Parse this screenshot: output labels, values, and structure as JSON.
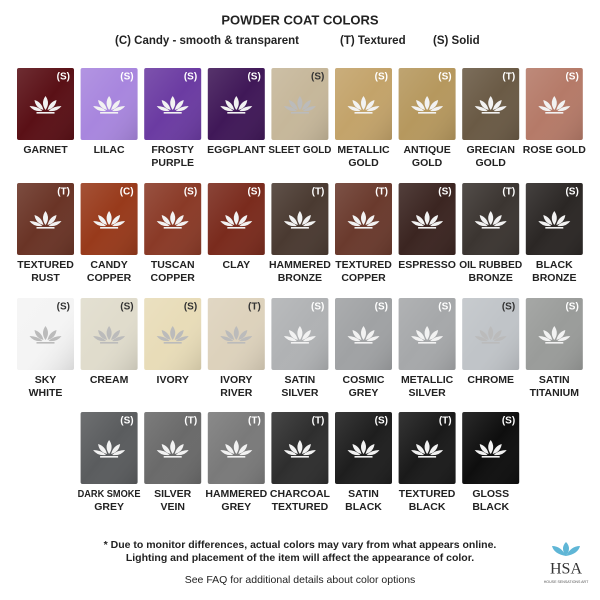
{
  "header": {
    "title": "POWDER COAT COLORS",
    "legend": [
      "(C) Candy - smooth & transparent",
      "(T) Textured",
      "(S) Solid"
    ]
  },
  "rows": [
    {
      "swatches": [
        {
          "name": [
            "GARNET"
          ],
          "code": "(S)",
          "color": "#5a1016"
        },
        {
          "name": [
            "LILAC"
          ],
          "code": "(S)",
          "color": "#a886de"
        },
        {
          "name": [
            "FROSTY",
            "PURPLE"
          ],
          "code": "(S)",
          "color": "#6b3ba2"
        },
        {
          "name": [
            "EGGPLANT"
          ],
          "code": "(S)",
          "color": "#401858"
        },
        {
          "name": [
            "SLEET GOLD"
          ],
          "code": "(S)",
          "color": "#c6b79a"
        },
        {
          "name": [
            "METALLIC",
            "GOLD"
          ],
          "code": "(S)",
          "color": "#c3a36a"
        },
        {
          "name": [
            "ANTIQUE",
            "GOLD"
          ],
          "code": "(S)",
          "color": "#b6985e"
        },
        {
          "name": [
            "GRECIAN",
            "GOLD"
          ],
          "code": "(T)",
          "color": "#6a5a45"
        },
        {
          "name": [
            "ROSE GOLD"
          ],
          "code": "(S)",
          "color": "#b57a68"
        }
      ]
    },
    {
      "swatches": [
        {
          "name": [
            "TEXTURED",
            "RUST"
          ],
          "code": "(T)",
          "color": "#6a3426"
        },
        {
          "name": [
            "CANDY",
            "COPPER"
          ],
          "code": "(C)",
          "color": "#983a1b"
        },
        {
          "name": [
            "TUSCAN",
            "COPPER"
          ],
          "code": "(S)",
          "color": "#8a3a27"
        },
        {
          "name": [
            "CLAY"
          ],
          "code": "(S)",
          "color": "#7a2b1d"
        },
        {
          "name": [
            "HAMMERED",
            "BRONZE"
          ],
          "code": "(T)",
          "color": "#4a3a31"
        },
        {
          "name": [
            "TEXTURED",
            "COPPER"
          ],
          "code": "(T)",
          "color": "#6a3a2d"
        },
        {
          "name": [
            "ESPRESSO"
          ],
          "code": "(S)",
          "color": "#3b2521"
        },
        {
          "name": [
            "OIL RUBBED",
            "BRONZE"
          ],
          "code": "(T)",
          "color": "#3b3531"
        },
        {
          "name": [
            "BLACK",
            "BRONZE"
          ],
          "code": "(S)",
          "color": "#2b2725"
        }
      ]
    },
    {
      "swatches": [
        {
          "name": [
            "SKY",
            "WHITE"
          ],
          "code": "(S)",
          "color": "#f4f4f4"
        },
        {
          "name": [
            "CREAM"
          ],
          "code": "(S)",
          "color": "#e0dccc"
        },
        {
          "name": [
            "IVORY"
          ],
          "code": "(S)",
          "color": "#e8dcb8"
        },
        {
          "name": [
            "IVORY",
            "RIVER"
          ],
          "code": "(T)",
          "color": "#ddd2bc"
        },
        {
          "name": [
            "SATIN",
            "SILVER"
          ],
          "code": "(S)",
          "color": "#b0b2b4"
        },
        {
          "name": [
            "COSMIC",
            "GREY"
          ],
          "code": "(S)",
          "color": "#a0a2a4"
        },
        {
          "name": [
            "METALLIC",
            "SILVER"
          ],
          "code": "(S)",
          "color": "#a6a8aa"
        },
        {
          "name": [
            "CHROME"
          ],
          "code": "(S)",
          "color": "#c0c4c8"
        },
        {
          "name": [
            "SATIN",
            "TITANIUM"
          ],
          "code": "(S)",
          "color": "#9a9c9a"
        }
      ]
    },
    {
      "swatches": [
        {
          "name": [
            "DARK SMOKE",
            "GREY"
          ],
          "code": "(S)",
          "color": "#5a5c5e"
        },
        {
          "name": [
            "SILVER",
            "VEIN"
          ],
          "code": "(T)",
          "color": "#6a6a6a"
        },
        {
          "name": [
            "HAMMERED",
            "GREY"
          ],
          "code": "(T)",
          "color": "#7a7a7a"
        },
        {
          "name": [
            "CHARCOAL",
            "TEXTURED"
          ],
          "code": "(T)",
          "color": "#2e2e2e"
        },
        {
          "name": [
            "SATIN",
            "BLACK"
          ],
          "code": "(S)",
          "color": "#1e1e1e"
        },
        {
          "name": [
            "TEXTURED",
            "BLACK"
          ],
          "code": "(T)",
          "color": "#1a1a1a"
        },
        {
          "name": [
            "GLOSS",
            "BLACK"
          ],
          "code": "(S)",
          "color": "#0e0e0e"
        }
      ]
    }
  ],
  "footer": {
    "notes": [
      "* Due to monitor differences, actual colors may vary from what appears online.",
      "Lighting and placement of the item will affect the appearance of color."
    ],
    "faq": "See FAQ for additional details about color options",
    "logo": {
      "text": "HSA",
      "tagline": "HOUSE SENSATIONS ART"
    }
  }
}
